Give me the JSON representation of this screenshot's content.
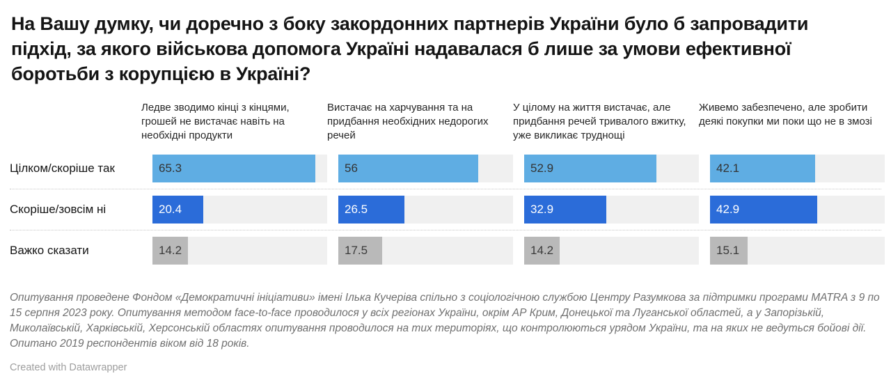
{
  "title": "На Вашу думку, чи доречно з боку закордонних партнерів України було б запровадити підхід, за якого військова допомога Україні надавалася б лише за умови ефективної боротьби з корупцією в Україні?",
  "chart_data": {
    "type": "bar",
    "layout": "horizontal bar table, 3 answer rows x 4 income-group columns, shared scale",
    "axis_max": 70,
    "grid": false,
    "track_color": "#f0f0f0",
    "categories": [
      "Ледве зводимо кінці з кінцями, грошей не вистачає навіть на необхідні продукти",
      "Вистачає на харчування та на придбання необхідних недорогих речей",
      "У цілому на життя вистачає, але придбання речей тривалого вжитку, уже викликає труднощі",
      "Живемо забезпечено, але зробити деякі покупки ми поки що не в змозі"
    ],
    "rows": [
      {
        "label": "Цілком/скоріше так",
        "color": "#5fade3",
        "value_color": "#333333",
        "values": [
          "65.3",
          "56",
          "52.9",
          "42.1"
        ]
      },
      {
        "label": "Скоріше/зовсім ні",
        "color": "#2b6cd9",
        "value_color": "#ffffff",
        "values": [
          "20.4",
          "26.5",
          "32.9",
          "42.9"
        ]
      },
      {
        "label": "Важко сказати",
        "color": "#b9b9b9",
        "value_color": "#3a3a3a",
        "values": [
          "14.2",
          "17.5",
          "14.2",
          "15.1"
        ]
      }
    ]
  },
  "footer": {
    "notes": "Опитування проведене Фондом «Демократичні ініціативи» імені Ілька Кучеріва спільно з соціологічною службою Центру Разумкова за підтримки програми MATRA з 9 по 15 серпня 2023 року. Опитування методом face-to-face проводилося у всіх регіонах України, окрім АР Крим, Донецької та Луганської областей, а у Запорізькій, Миколаївській, Харківській, Херсонській областях опитування проводилося на тих територіях, що контролюються урядом України, та на яких не ведуться бойові дії. Опитано 2019 респондентів віком від 18 років.",
    "credit": "Created with Datawrapper"
  }
}
